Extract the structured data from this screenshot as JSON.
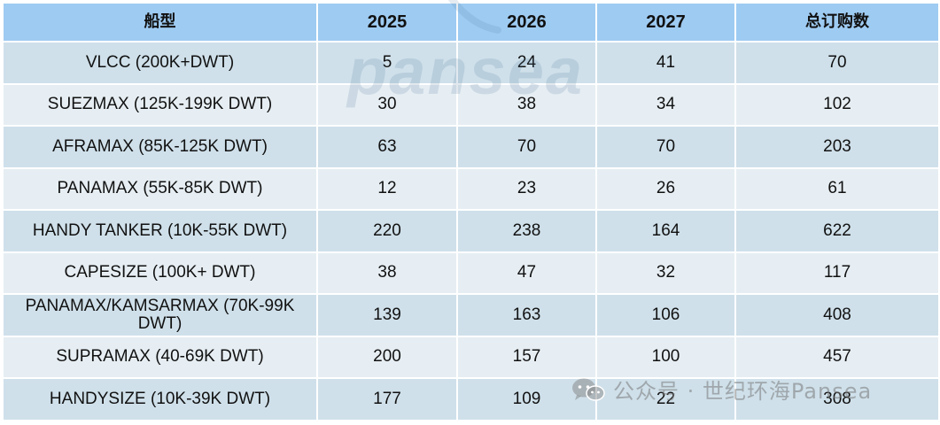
{
  "table": {
    "headers": [
      "船型",
      "2025",
      "2026",
      "2027",
      "总订购数"
    ],
    "rows": [
      {
        "type": "VLCC (200K+DWT)",
        "y2025": "5",
        "y2026": "24",
        "y2027": "41",
        "total": "70"
      },
      {
        "type": "SUEZMAX (125K-199K DWT)",
        "y2025": "30",
        "y2026": "38",
        "y2027": "34",
        "total": "102"
      },
      {
        "type": "AFRAMAX (85K-125K DWT)",
        "y2025": "63",
        "y2026": "70",
        "y2027": "70",
        "total": "203"
      },
      {
        "type": "PANAMAX (55K-85K DWT)",
        "y2025": "12",
        "y2026": "23",
        "y2027": "26",
        "total": "61"
      },
      {
        "type": "HANDY TANKER (10K-55K DWT)",
        "y2025": "220",
        "y2026": "238",
        "y2027": "164",
        "total": "622"
      },
      {
        "type": "CAPESIZE (100K+ DWT)",
        "y2025": "38",
        "y2026": "47",
        "y2027": "32",
        "total": "117"
      },
      {
        "type": "PANAMAX/KAMSARMAX (70K-99K DWT)",
        "y2025": "139",
        "y2026": "163",
        "y2027": "106",
        "total": "408"
      },
      {
        "type": "SUPRAMAX (40-69K DWT)",
        "y2025": "200",
        "y2026": "157",
        "y2027": "100",
        "total": "457"
      },
      {
        "type": "HANDYSIZE (10K-39K DWT)",
        "y2025": "177",
        "y2026": "109",
        "y2027": "22",
        "total": "308"
      }
    ]
  },
  "watermark": {
    "brand": "pansea",
    "wechat": "公众号 · 世纪环海Pansea",
    "icon": "wechat-icon"
  },
  "colors": {
    "header_bg": "#9ecbf2",
    "row_odd_bg": "#cfe0ea",
    "row_even_bg": "#e6eef3"
  }
}
